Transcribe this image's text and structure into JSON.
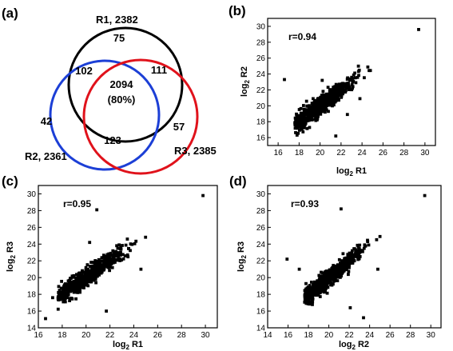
{
  "figure": {
    "panel_a": {
      "letter": "(a)",
      "sets": [
        {
          "label": "R1, 2382",
          "color": "#000000"
        },
        {
          "label": "R2, 2361",
          "color": "#1c3fd6"
        },
        {
          "label": "R3, 2385",
          "color": "#e0121b"
        }
      ],
      "regions": {
        "r1_only": "75",
        "r2_only": "42",
        "r3_only": "57",
        "r1_r2": "102",
        "r1_r3": "111",
        "r2_r3": "123",
        "all": "2094",
        "all_pct": "(80%)"
      }
    },
    "panel_b": {
      "letter": "(b)",
      "r_label": "r=0.94"
    },
    "panel_c": {
      "letter": "(c)",
      "r_label": "r=0.95"
    },
    "panel_d": {
      "letter": "(d)",
      "r_label": "r=0.93"
    }
  },
  "chart_data": [
    {
      "type": "venn",
      "sets": [
        "R1",
        "R2",
        "R3"
      ],
      "set_sizes": [
        2382,
        2361,
        2385
      ],
      "regions": {
        "R1": 75,
        "R2": 42,
        "R3": 57,
        "R1&R2": 102,
        "R1&R3": 111,
        "R2&R3": 123,
        "R1&R2&R3": 2094
      },
      "annotation": "(80%)"
    },
    {
      "type": "scatter",
      "xlabel": "log2 R1",
      "ylabel": "log2 R2",
      "xlim": [
        15,
        31
      ],
      "ylim": [
        15,
        31
      ],
      "xticks": [
        16,
        18,
        20,
        22,
        24,
        26,
        28,
        30
      ],
      "yticks": [
        16,
        18,
        20,
        22,
        24,
        26,
        28,
        30
      ],
      "r": 0.94,
      "grid": false,
      "outliers": [
        [
          16.6,
          23.3
        ],
        [
          29.4,
          29.6
        ],
        [
          18.5,
          19.4
        ],
        [
          21.5,
          16.2
        ],
        [
          17.8,
          18.4
        ],
        [
          23.8,
          20.9
        ],
        [
          20.2,
          23.2
        ],
        [
          22.6,
          18.9
        ]
      ]
    },
    {
      "type": "scatter",
      "xlabel": "log2 R1",
      "ylabel": "log2 R3",
      "xlim": [
        16,
        31
      ],
      "ylim": [
        14,
        31
      ],
      "xticks": [
        16,
        18,
        20,
        22,
        24,
        26,
        28,
        30
      ],
      "yticks": [
        14,
        16,
        18,
        20,
        22,
        24,
        26,
        28,
        30
      ],
      "r": 0.95,
      "grid": false,
      "outliers": [
        [
          20.9,
          28.1
        ],
        [
          29.8,
          29.8
        ],
        [
          16.6,
          15.1
        ],
        [
          18.2,
          18.9
        ],
        [
          21.7,
          16.0
        ],
        [
          24.6,
          21.0
        ],
        [
          20.3,
          24.2
        ],
        [
          17.2,
          17.6
        ]
      ]
    },
    {
      "type": "scatter",
      "xlabel": "log2 R2",
      "ylabel": "log2 R3",
      "xlim": [
        14,
        31
      ],
      "ylim": [
        14,
        31
      ],
      "xticks": [
        14,
        16,
        18,
        20,
        22,
        24,
        26,
        28,
        30
      ],
      "yticks": [
        14,
        16,
        18,
        20,
        22,
        24,
        26,
        28,
        30
      ],
      "r": 0.93,
      "grid": false,
      "outliers": [
        [
          15.9,
          22.2
        ],
        [
          29.4,
          29.8
        ],
        [
          21.2,
          28.2
        ],
        [
          22.1,
          16.4
        ],
        [
          17.1,
          21.0
        ],
        [
          23.4,
          15.2
        ],
        [
          24.8,
          21.0
        ],
        [
          18.4,
          17.1
        ]
      ]
    }
  ]
}
